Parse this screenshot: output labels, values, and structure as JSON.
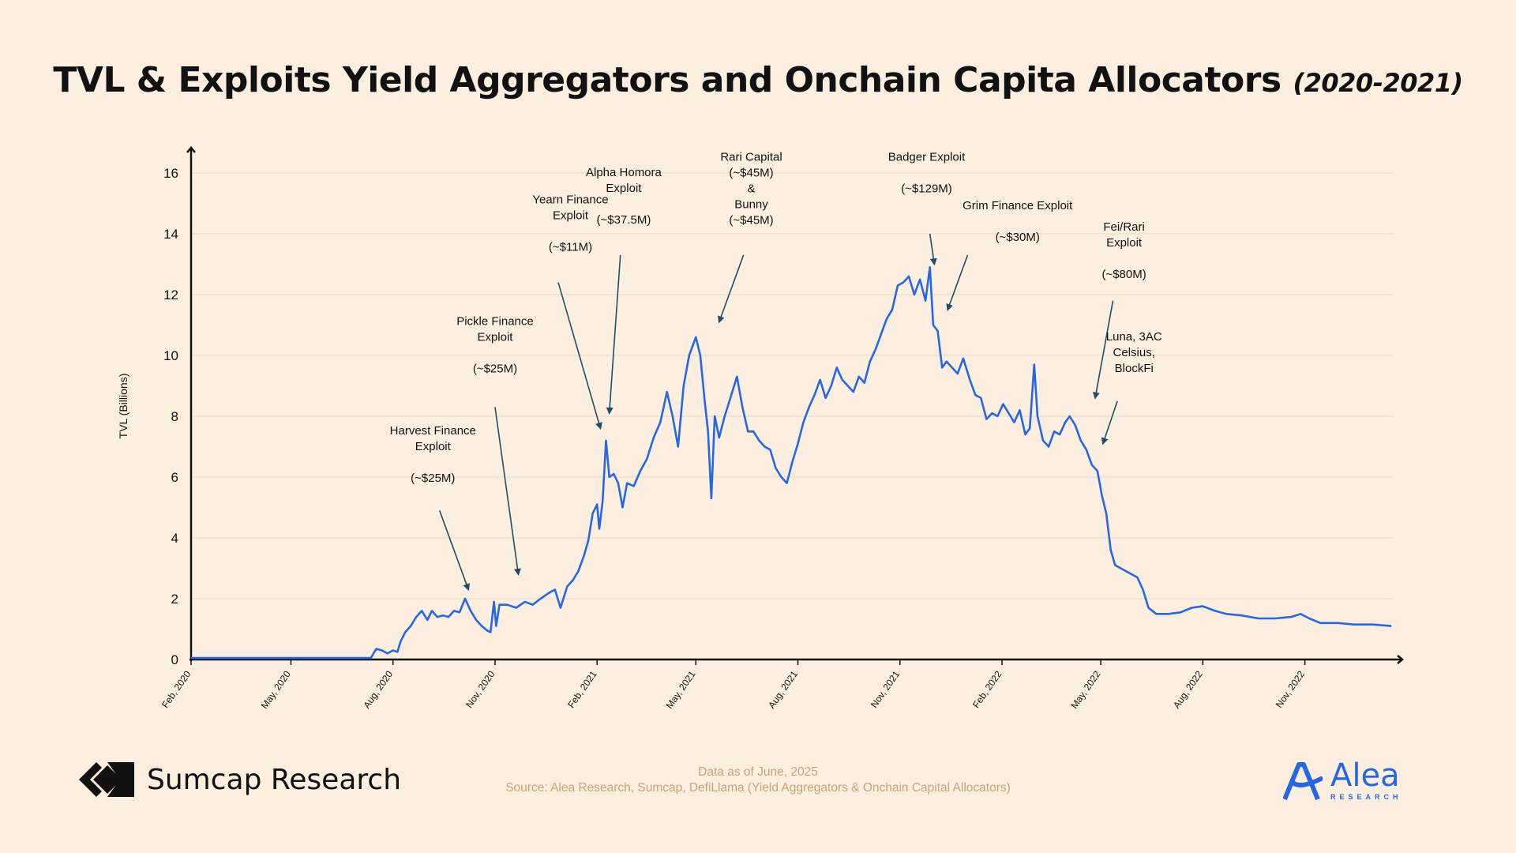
{
  "title": {
    "main": "TVL & Exploits Yield Aggregators and Onchain Capita Allocators",
    "years": "(2020-2021)"
  },
  "chart_data": {
    "type": "line",
    "title": "TVL & Exploits Yield Aggregators and Onchain Capita Allocators (2020-2021)",
    "ylabel": "TVL (Billions)",
    "xlabel": "",
    "ylim": [
      0,
      16
    ],
    "yticks": [
      0,
      2,
      4,
      6,
      8,
      10,
      12,
      14,
      16
    ],
    "xlim": [
      "2020-02-01",
      "2023-01-20"
    ],
    "xticks": [
      {
        "date": "2020-02-01",
        "label": "Feb, 2020"
      },
      {
        "date": "2020-05-01",
        "label": "May, 2020"
      },
      {
        "date": "2020-08-01",
        "label": "Aug, 2020"
      },
      {
        "date": "2020-11-01",
        "label": "Nov, 2020"
      },
      {
        "date": "2021-02-01",
        "label": "Feb, 2021"
      },
      {
        "date": "2021-05-01",
        "label": "May, 2021"
      },
      {
        "date": "2021-08-01",
        "label": "Aug, 2021"
      },
      {
        "date": "2021-11-01",
        "label": "Nov, 2021"
      },
      {
        "date": "2022-02-01",
        "label": "Feb, 2022"
      },
      {
        "date": "2022-05-01",
        "label": "May, 2022"
      },
      {
        "date": "2022-08-01",
        "label": "Aug, 2022"
      },
      {
        "date": "2022-11-01",
        "label": "Nov, 2022"
      }
    ],
    "grid": "horizontal",
    "line_color": "#2667e8",
    "series": [
      {
        "name": "",
        "points": [
          [
            "2020-02-01",
            0.05
          ],
          [
            "2020-03-15",
            0.05
          ],
          [
            "2020-05-01",
            0.05
          ],
          [
            "2020-06-15",
            0.05
          ],
          [
            "2020-07-12",
            0.05
          ],
          [
            "2020-07-17",
            0.35
          ],
          [
            "2020-07-22",
            0.3
          ],
          [
            "2020-07-27",
            0.2
          ],
          [
            "2020-08-01",
            0.3
          ],
          [
            "2020-08-05",
            0.25
          ],
          [
            "2020-08-08",
            0.6
          ],
          [
            "2020-08-12",
            0.9
          ],
          [
            "2020-08-17",
            1.1
          ],
          [
            "2020-08-22",
            1.4
          ],
          [
            "2020-08-27",
            1.6
          ],
          [
            "2020-09-01",
            1.3
          ],
          [
            "2020-09-05",
            1.6
          ],
          [
            "2020-09-10",
            1.4
          ],
          [
            "2020-09-15",
            1.45
          ],
          [
            "2020-09-20",
            1.4
          ],
          [
            "2020-09-25",
            1.6
          ],
          [
            "2020-09-30",
            1.55
          ],
          [
            "2020-10-05",
            2.0
          ],
          [
            "2020-10-10",
            1.6
          ],
          [
            "2020-10-15",
            1.3
          ],
          [
            "2020-10-20",
            1.1
          ],
          [
            "2020-10-25",
            0.95
          ],
          [
            "2020-10-28",
            0.9
          ],
          [
            "2020-10-31",
            1.9
          ],
          [
            "2020-11-02",
            1.1
          ],
          [
            "2020-11-05",
            1.8
          ],
          [
            "2020-11-12",
            1.8
          ],
          [
            "2020-11-20",
            1.7
          ],
          [
            "2020-11-28",
            1.9
          ],
          [
            "2020-12-05",
            1.8
          ],
          [
            "2020-12-12",
            2.0
          ],
          [
            "2020-12-20",
            2.2
          ],
          [
            "2020-12-25",
            2.3
          ],
          [
            "2020-12-30",
            1.7
          ],
          [
            "2021-01-05",
            2.4
          ],
          [
            "2021-01-10",
            2.6
          ],
          [
            "2021-01-15",
            2.9
          ],
          [
            "2021-01-20",
            3.4
          ],
          [
            "2021-01-24",
            3.9
          ],
          [
            "2021-01-28",
            4.8
          ],
          [
            "2021-02-01",
            5.1
          ],
          [
            "2021-02-03",
            4.3
          ],
          [
            "2021-02-06",
            5.2
          ],
          [
            "2021-02-09",
            7.2
          ],
          [
            "2021-02-12",
            6.0
          ],
          [
            "2021-02-16",
            6.1
          ],
          [
            "2021-02-20",
            5.8
          ],
          [
            "2021-02-24",
            5.0
          ],
          [
            "2021-02-28",
            5.8
          ],
          [
            "2021-03-06",
            5.7
          ],
          [
            "2021-03-12",
            6.2
          ],
          [
            "2021-03-18",
            6.6
          ],
          [
            "2021-03-24",
            7.3
          ],
          [
            "2021-03-30",
            7.8
          ],
          [
            "2021-04-05",
            8.8
          ],
          [
            "2021-04-10",
            8.0
          ],
          [
            "2021-04-15",
            7.0
          ],
          [
            "2021-04-20",
            9.0
          ],
          [
            "2021-04-25",
            10.0
          ],
          [
            "2021-05-01",
            10.6
          ],
          [
            "2021-05-05",
            10.0
          ],
          [
            "2021-05-09",
            8.5
          ],
          [
            "2021-05-12",
            7.5
          ],
          [
            "2021-05-15",
            5.3
          ],
          [
            "2021-05-18",
            8.0
          ],
          [
            "2021-05-22",
            7.3
          ],
          [
            "2021-05-27",
            8.0
          ],
          [
            "2021-06-02",
            8.7
          ],
          [
            "2021-06-07",
            9.3
          ],
          [
            "2021-06-12",
            8.3
          ],
          [
            "2021-06-17",
            7.5
          ],
          [
            "2021-06-22",
            7.5
          ],
          [
            "2021-06-27",
            7.2
          ],
          [
            "2021-07-02",
            7.0
          ],
          [
            "2021-07-07",
            6.9
          ],
          [
            "2021-07-12",
            6.3
          ],
          [
            "2021-07-17",
            6.0
          ],
          [
            "2021-07-22",
            5.8
          ],
          [
            "2021-07-27",
            6.5
          ],
          [
            "2021-08-01",
            7.1
          ],
          [
            "2021-08-06",
            7.8
          ],
          [
            "2021-08-11",
            8.3
          ],
          [
            "2021-08-16",
            8.7
          ],
          [
            "2021-08-21",
            9.2
          ],
          [
            "2021-08-26",
            8.6
          ],
          [
            "2021-08-31",
            9.0
          ],
          [
            "2021-09-05",
            9.6
          ],
          [
            "2021-09-10",
            9.2
          ],
          [
            "2021-09-15",
            9.0
          ],
          [
            "2021-09-20",
            8.8
          ],
          [
            "2021-09-25",
            9.3
          ],
          [
            "2021-09-30",
            9.1
          ],
          [
            "2021-10-05",
            9.8
          ],
          [
            "2021-10-10",
            10.2
          ],
          [
            "2021-10-15",
            10.7
          ],
          [
            "2021-10-20",
            11.2
          ],
          [
            "2021-10-25",
            11.5
          ],
          [
            "2021-10-30",
            12.3
          ],
          [
            "2021-11-04",
            12.4
          ],
          [
            "2021-11-09",
            12.6
          ],
          [
            "2021-11-14",
            12.0
          ],
          [
            "2021-11-19",
            12.5
          ],
          [
            "2021-11-24",
            11.8
          ],
          [
            "2021-11-28",
            12.9
          ],
          [
            "2021-12-01",
            11.0
          ],
          [
            "2021-12-05",
            10.8
          ],
          [
            "2021-12-09",
            9.6
          ],
          [
            "2021-12-13",
            9.8
          ],
          [
            "2021-12-18",
            9.6
          ],
          [
            "2021-12-23",
            9.4
          ],
          [
            "2021-12-28",
            9.9
          ],
          [
            "2022-01-03",
            9.2
          ],
          [
            "2022-01-08",
            8.7
          ],
          [
            "2022-01-13",
            8.6
          ],
          [
            "2022-01-18",
            7.9
          ],
          [
            "2022-01-23",
            8.1
          ],
          [
            "2022-01-28",
            8.0
          ],
          [
            "2022-02-02",
            8.4
          ],
          [
            "2022-02-07",
            8.1
          ],
          [
            "2022-02-12",
            7.8
          ],
          [
            "2022-02-17",
            8.2
          ],
          [
            "2022-02-22",
            7.4
          ],
          [
            "2022-02-26",
            7.6
          ],
          [
            "2022-03-02",
            9.7
          ],
          [
            "2022-03-05",
            8.0
          ],
          [
            "2022-03-10",
            7.2
          ],
          [
            "2022-03-15",
            7.0
          ],
          [
            "2022-03-20",
            7.5
          ],
          [
            "2022-03-25",
            7.4
          ],
          [
            "2022-03-30",
            7.8
          ],
          [
            "2022-04-03",
            8.0
          ],
          [
            "2022-04-08",
            7.7
          ],
          [
            "2022-04-13",
            7.2
          ],
          [
            "2022-04-18",
            6.9
          ],
          [
            "2022-04-23",
            6.4
          ],
          [
            "2022-04-28",
            6.2
          ],
          [
            "2022-05-02",
            5.4
          ],
          [
            "2022-05-06",
            4.8
          ],
          [
            "2022-05-10",
            3.6
          ],
          [
            "2022-05-14",
            3.1
          ],
          [
            "2022-05-19",
            3.0
          ],
          [
            "2022-05-24",
            2.9
          ],
          [
            "2022-06-03",
            2.7
          ],
          [
            "2022-06-08",
            2.3
          ],
          [
            "2022-06-13",
            1.7
          ],
          [
            "2022-06-20",
            1.5
          ],
          [
            "2022-07-01",
            1.5
          ],
          [
            "2022-07-12",
            1.55
          ],
          [
            "2022-07-22",
            1.7
          ],
          [
            "2022-08-01",
            1.75
          ],
          [
            "2022-08-12",
            1.6
          ],
          [
            "2022-08-22",
            1.5
          ],
          [
            "2022-09-05",
            1.45
          ],
          [
            "2022-09-20",
            1.35
          ],
          [
            "2022-10-05",
            1.35
          ],
          [
            "2022-10-20",
            1.4
          ],
          [
            "2022-10-28",
            1.5
          ],
          [
            "2022-11-05",
            1.35
          ],
          [
            "2022-11-15",
            1.2
          ],
          [
            "2022-12-01",
            1.2
          ],
          [
            "2022-12-15",
            1.15
          ],
          [
            "2023-01-01",
            1.15
          ],
          [
            "2023-01-18",
            1.1
          ]
        ]
      }
    ],
    "annotations": [
      {
        "lines": [
          "Harvest Finance",
          "Exploit",
          "",
          "(~$25M)"
        ],
        "text_x_date": "2020-09-06",
        "text_top": 7.4,
        "arrow_from": [
          "2020-09-12",
          4.9
        ],
        "arrow_to": [
          "2020-10-08",
          2.3
        ]
      },
      {
        "lines": [
          "Pickle Finance",
          "Exploit",
          "",
          "(~$25M)"
        ],
        "text_x_date": "2020-11-01",
        "text_top": 11.0,
        "arrow_from": [
          "2020-11-01",
          8.3
        ],
        "arrow_to": [
          "2020-11-22",
          2.8
        ]
      },
      {
        "lines": [
          "Yearn Finance",
          "Exploit",
          "",
          "(~$11M)"
        ],
        "text_x_date": "2021-01-08",
        "text_top": 15.0,
        "arrow_from": [
          "2020-12-28",
          12.4
        ],
        "arrow_to": [
          "2021-02-04",
          7.6
        ]
      },
      {
        "lines": [
          "Alpha Homora",
          "Exploit",
          "",
          "(~$37.5M)"
        ],
        "text_x_date": "2021-02-25",
        "text_top": 15.9,
        "arrow_from": [
          "2021-02-22",
          13.3
        ],
        "arrow_to": [
          "2021-02-12",
          8.1
        ]
      },
      {
        "lines": [
          "Rari Capital",
          "(~$45M)",
          "&",
          "Bunny",
          "(~$45M)"
        ],
        "text_x_date": "2021-06-20",
        "text_top": 16.4,
        "arrow_from": [
          "2021-06-13",
          13.3
        ],
        "arrow_to": [
          "2021-05-22",
          11.1
        ]
      },
      {
        "lines": [
          "Badger Exploit",
          "",
          "(~$129M)"
        ],
        "text_x_date": "2021-11-25",
        "text_top": 16.4,
        "arrow_from": [
          "2021-11-28",
          14.0
        ],
        "arrow_to": [
          "2021-12-02",
          13.0
        ]
      },
      {
        "lines": [
          "Grim Finance Exploit",
          "",
          "(~$30M)"
        ],
        "text_x_date": "2022-02-15",
        "text_top": 14.8,
        "arrow_from": [
          "2022-01-01",
          13.3
        ],
        "arrow_to": [
          "2021-12-14",
          11.5
        ]
      },
      {
        "lines": [
          "Fei/Rari",
          "Exploit",
          "",
          "(~$80M)"
        ],
        "text_x_date": "2022-05-22",
        "text_top": 14.1,
        "arrow_from": [
          "2022-05-12",
          11.8
        ],
        "arrow_to": [
          "2022-04-26",
          8.6
        ]
      },
      {
        "lines": [
          "Luna, 3AC",
          "Celsius,",
          "BlockFi"
        ],
        "text_x_date": "2022-05-31",
        "text_top": 10.5,
        "arrow_from": [
          "2022-05-16",
          8.5
        ],
        "arrow_to": [
          "2022-05-03",
          7.1
        ]
      }
    ]
  },
  "footer": {
    "brand": "Sumcap Research",
    "source_line1": "Data as of June, 2025",
    "source_line2": "Source: Alea Research, Sumcap, DefiLlama (Yield Aggregators & Onchain Capital Allocators)",
    "alea_name": "Alea",
    "alea_sub": "RESEARCH",
    "colors": {
      "source_text": "#c9a37a",
      "alea_blue": "#2667e8",
      "background": "#fcefe0"
    }
  }
}
